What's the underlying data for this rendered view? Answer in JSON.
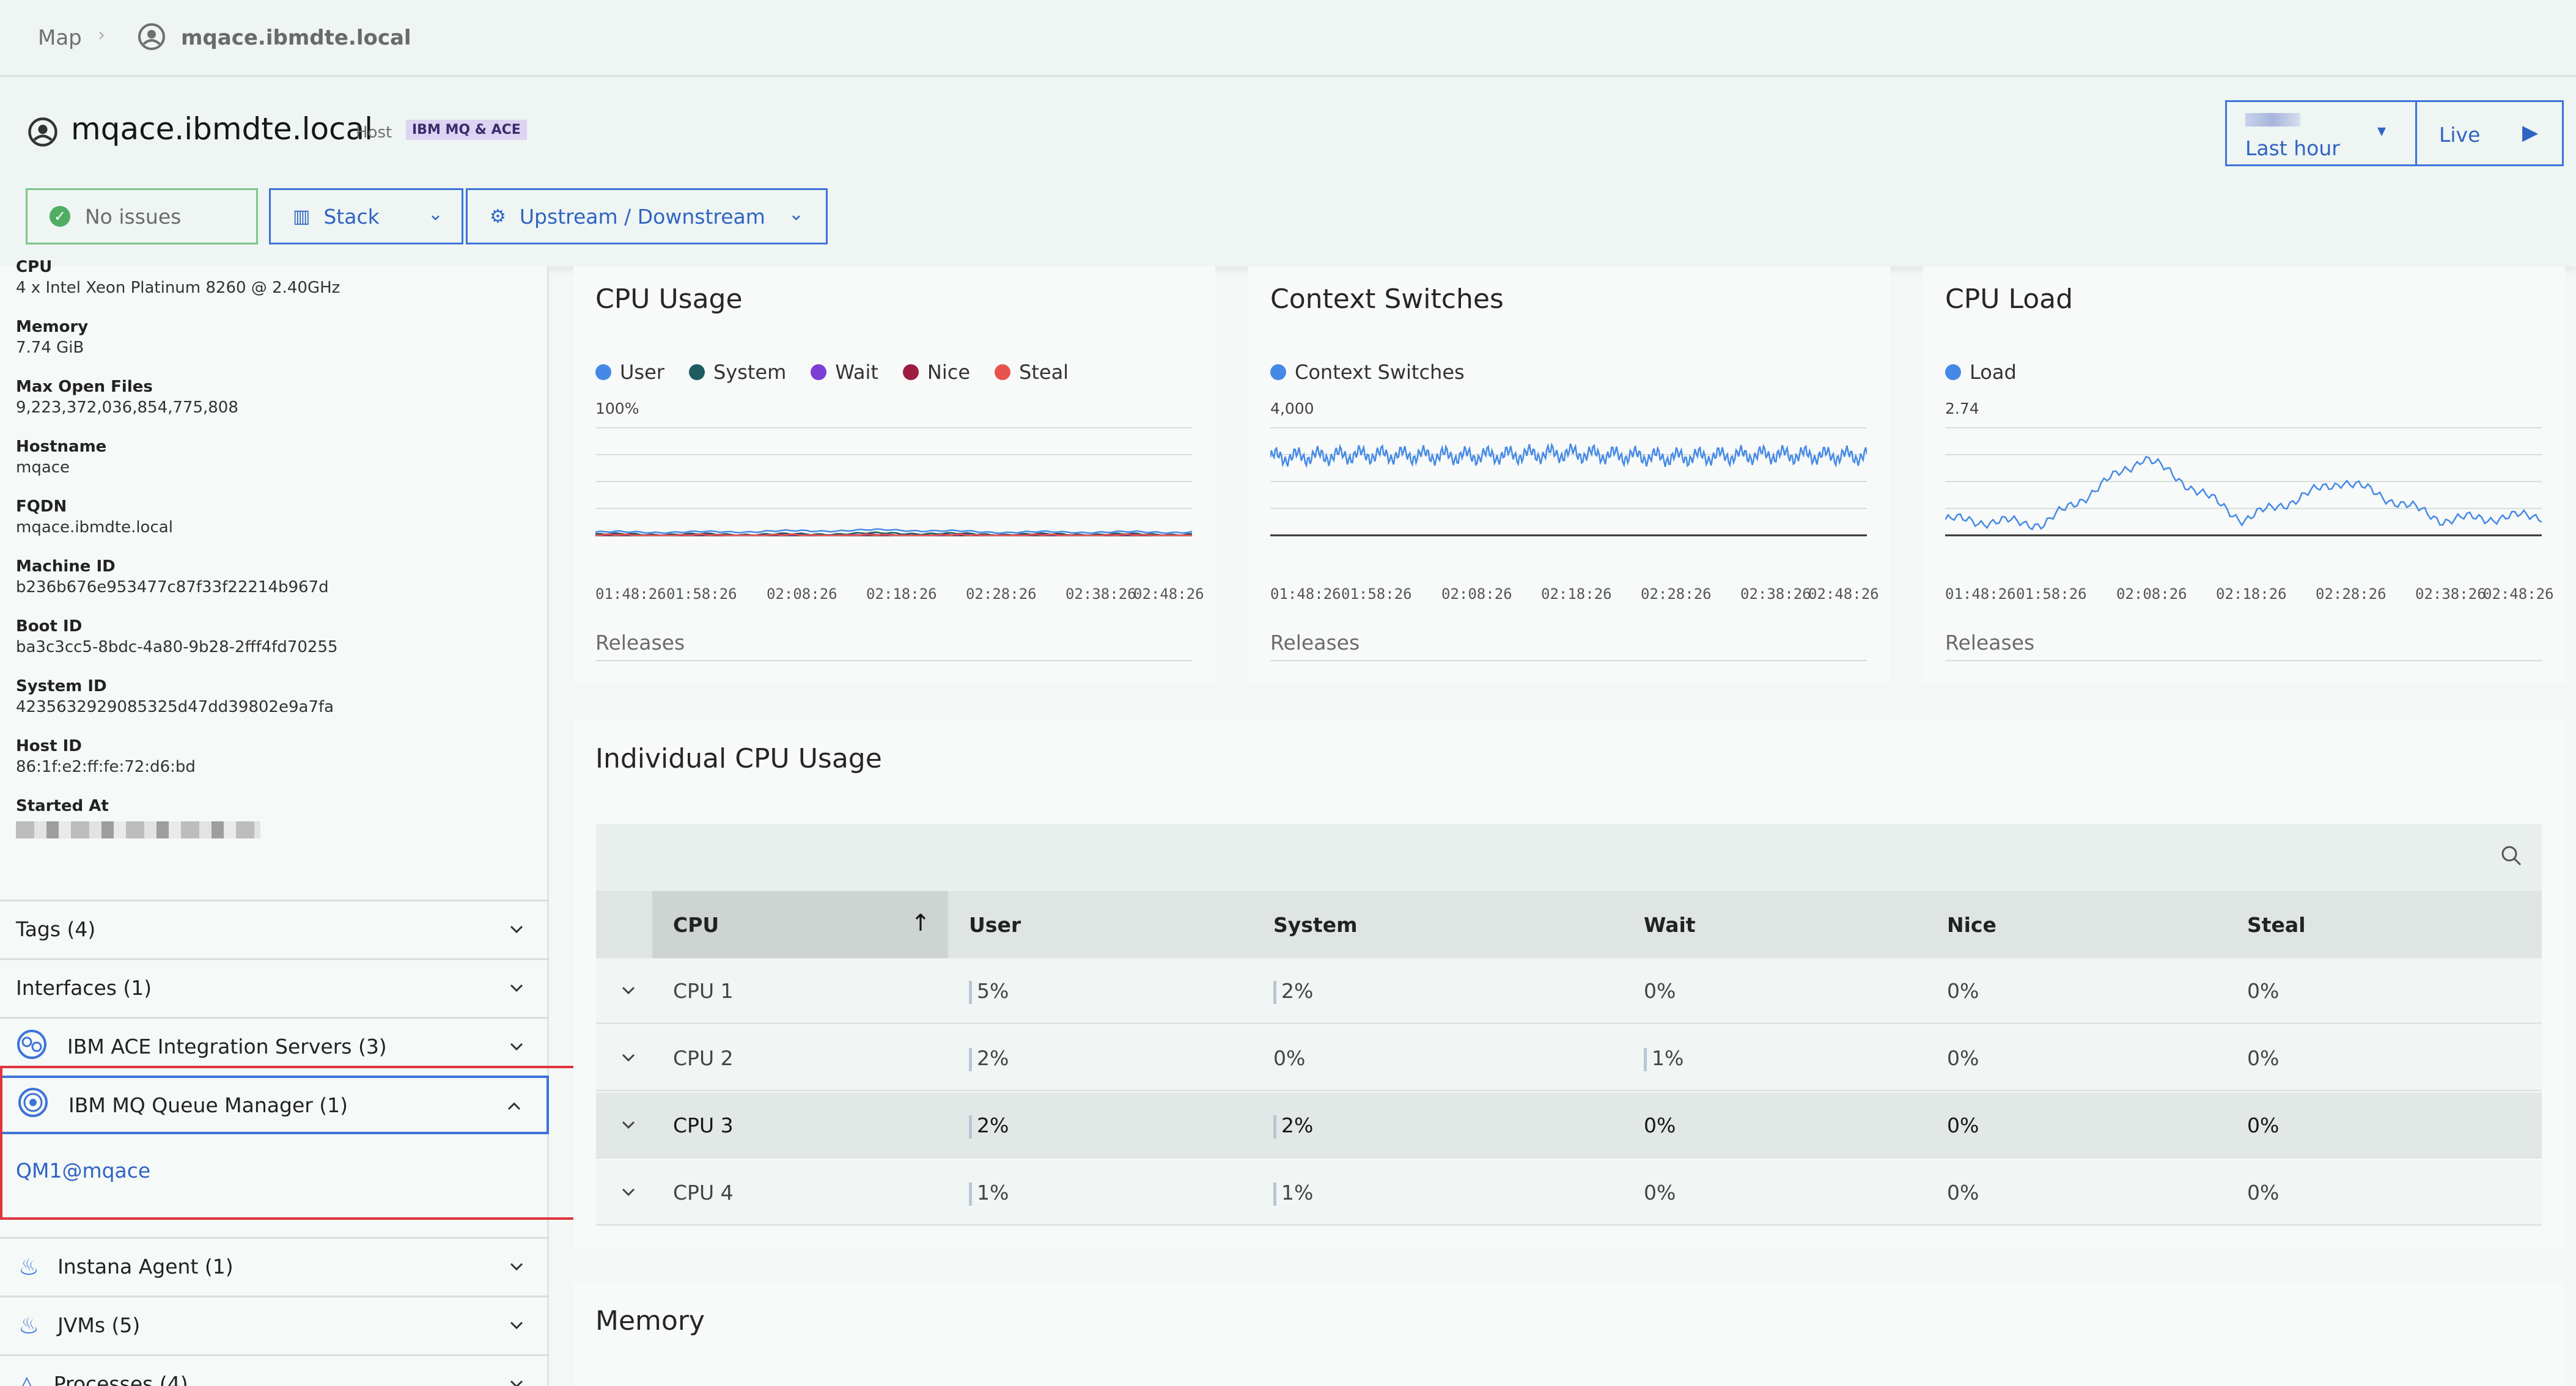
{
  "breadcrumb": {
    "map": "Map",
    "host": "mqace.ibmdte.local"
  },
  "header": {
    "title": "mqace.ibmdte.local",
    "type_label": "Host",
    "badge": "IBM MQ & ACE",
    "no_issues": "No issues",
    "stack": "Stack",
    "upstream": "Upstream / Downstream",
    "time_range": "Last hour",
    "live": "Live"
  },
  "sidebar": {
    "info": [
      {
        "label": "CPU",
        "value": "4 x Intel Xeon Platinum 8260 @ 2.40GHz"
      },
      {
        "label": "Memory",
        "value": "7.74 GiB"
      },
      {
        "label": "Max Open Files",
        "value": "9,223,372,036,854,775,808"
      },
      {
        "label": "Hostname",
        "value": "mqace"
      },
      {
        "label": "FQDN",
        "value": "mqace.ibmdte.local"
      },
      {
        "label": "Machine ID",
        "value": "b236b676e953477c87f33f22214b967d"
      },
      {
        "label": "Boot ID",
        "value": "ba3c3cc5-8bdc-4a80-9b28-2fff4fd70255"
      },
      {
        "label": "System ID",
        "value": "4235632929085325d47dd39802e9a7fa"
      },
      {
        "label": "Host ID",
        "value": "86:1f:e2:ff:fe:72:d6:bd"
      },
      {
        "label": "Started At",
        "value": ""
      }
    ],
    "tags": "Tags (4)",
    "interfaces": "Interfaces (1)",
    "ace": "IBM ACE Integration Servers (3)",
    "mq": "IBM MQ Queue Manager (1)",
    "mq_item": "QM1@mqace",
    "agent": "Instana Agent (1)",
    "jvms": "JVMs (5)",
    "processes": "Processes (4)"
  },
  "charts": {
    "ticks": [
      "01:48:26",
      "01:58:26",
      "02:08:26",
      "02:18:26",
      "02:28:26",
      "02:38:26",
      "02:48:26"
    ],
    "releases": "Releases",
    "cpu_usage": {
      "title": "CPU Usage",
      "ymax_label": "100%",
      "legend": [
        {
          "name": "User",
          "color": "#4589e6"
        },
        {
          "name": "System",
          "color": "#1d5b5e"
        },
        {
          "name": "Wait",
          "color": "#7c3fd4"
        },
        {
          "name": "Nice",
          "color": "#9e1c3e"
        },
        {
          "name": "Steal",
          "color": "#e8534e"
        }
      ]
    },
    "context_switches": {
      "title": "Context Switches",
      "ymax_label": "4,000",
      "legend": [
        {
          "name": "Context Switches",
          "color": "#4589e6"
        }
      ]
    },
    "cpu_load": {
      "title": "CPU Load",
      "ymax_label": "2.74",
      "legend": [
        {
          "name": "Load",
          "color": "#4589e6"
        }
      ]
    }
  },
  "chart_data": [
    {
      "type": "line",
      "title": "CPU Usage",
      "x": [
        "01:48:26",
        "01:58:26",
        "02:08:26",
        "02:18:26",
        "02:28:26",
        "02:38:26",
        "02:48:26"
      ],
      "ylim": [
        0,
        100
      ],
      "series": [
        {
          "name": "User",
          "values": [
            3,
            3,
            4,
            5,
            3,
            3,
            3
          ]
        },
        {
          "name": "System",
          "values": [
            1,
            1,
            1,
            2,
            1,
            1,
            1
          ]
        },
        {
          "name": "Wait",
          "values": [
            0,
            0,
            0,
            0,
            0,
            0,
            0
          ]
        },
        {
          "name": "Nice",
          "values": [
            0,
            0,
            0,
            0,
            0,
            0,
            0
          ]
        },
        {
          "name": "Steal",
          "values": [
            0,
            0,
            0,
            0,
            0,
            0,
            0
          ]
        }
      ]
    },
    {
      "type": "line",
      "title": "Context Switches",
      "x": [
        "01:48:26",
        "01:58:26",
        "02:08:26",
        "02:18:26",
        "02:28:26",
        "02:38:26",
        "02:48:26"
      ],
      "ylim": [
        0,
        4000
      ],
      "series": [
        {
          "name": "Context Switches",
          "values": [
            2900,
            3000,
            2950,
            3050,
            2900,
            3000,
            2950
          ]
        }
      ]
    },
    {
      "type": "line",
      "title": "CPU Load",
      "x": [
        "01:48:26",
        "01:58:26",
        "02:08:26",
        "02:18:26",
        "02:28:26",
        "02:38:26",
        "02:48:26"
      ],
      "ylim": [
        0,
        2.74
      ],
      "series": [
        {
          "name": "Load",
          "values": [
            0.4,
            0.3,
            2.0,
            0.4,
            1.4,
            0.4,
            0.5
          ]
        }
      ]
    }
  ],
  "individual_cpu": {
    "title": "Individual CPU Usage",
    "columns": [
      "CPU",
      "User",
      "System",
      "Wait",
      "Nice",
      "Steal"
    ],
    "rows": [
      [
        "CPU 1",
        "5%",
        "2%",
        "0%",
        "0%",
        "0%"
      ],
      [
        "CPU 2",
        "2%",
        "0%",
        "1%",
        "0%",
        "0%"
      ],
      [
        "CPU 3",
        "2%",
        "2%",
        "0%",
        "0%",
        "0%"
      ],
      [
        "CPU 4",
        "1%",
        "1%",
        "0%",
        "0%",
        "0%"
      ]
    ]
  },
  "memory": {
    "title": "Memory"
  }
}
